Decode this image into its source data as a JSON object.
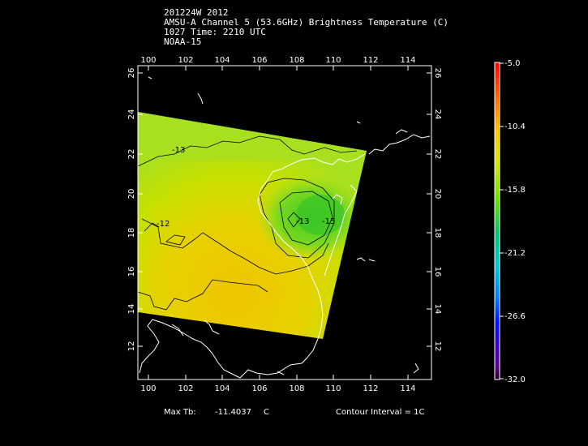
{
  "header": {
    "line1": "201224W 2012",
    "line2": "AMSU-A Channel 5 (53.6GHz) Brightness Temperature (C)",
    "line3": "1027 Time: 2210 UTC",
    "line4": "NOAA-15"
  },
  "map": {
    "lon_ticks": [
      "100",
      "102",
      "104",
      "106",
      "108",
      "110",
      "112",
      "114"
    ],
    "lat_ticks": [
      "12",
      "14",
      "16",
      "18",
      "20",
      "22",
      "24",
      "26"
    ],
    "contour_labels": [
      "-13",
      "-12",
      "-15",
      "-13"
    ]
  },
  "colorbar": {
    "labels": [
      "-5.0",
      "-10.4",
      "-15.8",
      "-21.2",
      "-26.6",
      "-32.0"
    ],
    "colors": [
      "#ff0000",
      "#ff6a00",
      "#ffc800",
      "#d8e800",
      "#66e000",
      "#00c060",
      "#00c8c8",
      "#0090ff",
      "#0020ff",
      "#3000c0",
      "#500080",
      "#200020"
    ]
  },
  "footer": {
    "max_tb_label": "Max Tb:",
    "max_tb_value": "-11.4037",
    "max_tb_unit": "C",
    "contour_interval": "Contour Interval = 1C"
  }
}
